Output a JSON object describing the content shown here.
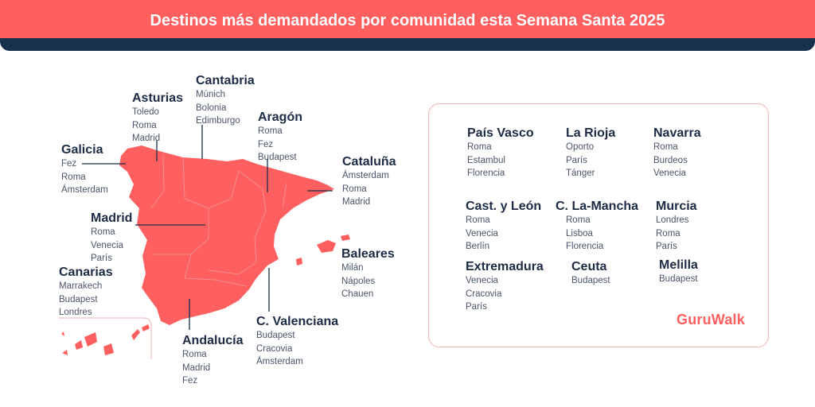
{
  "header": {
    "title": "Destinos más demandados por comunidad esta Semana Santa 2025"
  },
  "map_regions": [
    {
      "id": "galicia",
      "name": "Galicia",
      "destinations": [
        "Fez",
        "Roma",
        "Ámsterdam"
      ]
    },
    {
      "id": "asturias",
      "name": "Asturias",
      "destinations": [
        "Toledo",
        "Roma",
        "Madrid"
      ]
    },
    {
      "id": "cantabria",
      "name": "Cantabria",
      "destinations": [
        "Múnich",
        "Bolonia",
        "Edimburgo"
      ]
    },
    {
      "id": "aragon",
      "name": "Aragón",
      "destinations": [
        "Roma",
        "Fez",
        "Budapest"
      ]
    },
    {
      "id": "cataluna",
      "name": "Cataluña",
      "destinations": [
        "Ámsterdam",
        "Roma",
        "Madrid"
      ]
    },
    {
      "id": "madrid",
      "name": "Madrid",
      "destinations": [
        "Roma",
        "Venecia",
        "París"
      ]
    },
    {
      "id": "baleares",
      "name": "Baleares",
      "destinations": [
        "Milán",
        "Nápoles",
        "Chauen"
      ]
    },
    {
      "id": "canarias",
      "name": "Canarias",
      "destinations": [
        "Marrakech",
        "Budapest",
        "Londres"
      ]
    },
    {
      "id": "valenciana",
      "name": "C. Valenciana",
      "destinations": [
        "Budapest",
        "Cracovia",
        "Ámsterdam"
      ]
    },
    {
      "id": "andalucia",
      "name": "Andalucía",
      "destinations": [
        "Roma",
        "Madrid",
        "Fez"
      ]
    }
  ],
  "panel_regions": [
    {
      "id": "pais-vasco",
      "name": "País Vasco",
      "destinations": [
        "Roma",
        "Estambul",
        "Florencia"
      ]
    },
    {
      "id": "la-rioja",
      "name": "La Rioja",
      "destinations": [
        "Oporto",
        "París",
        "Tánger"
      ]
    },
    {
      "id": "navarra",
      "name": "Navarra",
      "destinations": [
        "Roma",
        "Burdeos",
        "Venecia"
      ]
    },
    {
      "id": "cast-leon",
      "name": "Cast. y León",
      "destinations": [
        "Roma",
        "Venecia",
        "Berlín"
      ]
    },
    {
      "id": "la-mancha",
      "name": "C. La-Mancha",
      "destinations": [
        "Roma",
        "Lisboa",
        "Florencia"
      ]
    },
    {
      "id": "murcia",
      "name": "Murcia",
      "destinations": [
        "Londres",
        "Roma",
        "París"
      ]
    },
    {
      "id": "extremadura",
      "name": "Extremadura",
      "destinations": [
        "Venecia",
        "Cracovia",
        "París"
      ]
    },
    {
      "id": "ceuta",
      "name": "Ceuta",
      "destinations": [
        "Budapest"
      ]
    },
    {
      "id": "melilla",
      "name": "Melilla",
      "destinations": [
        "Budapest"
      ]
    }
  ],
  "brand": {
    "logo_text": "GuruWalk"
  },
  "colors": {
    "accent": "#ff5f5f",
    "navy": "#17314d",
    "text": "#1d2b45"
  }
}
